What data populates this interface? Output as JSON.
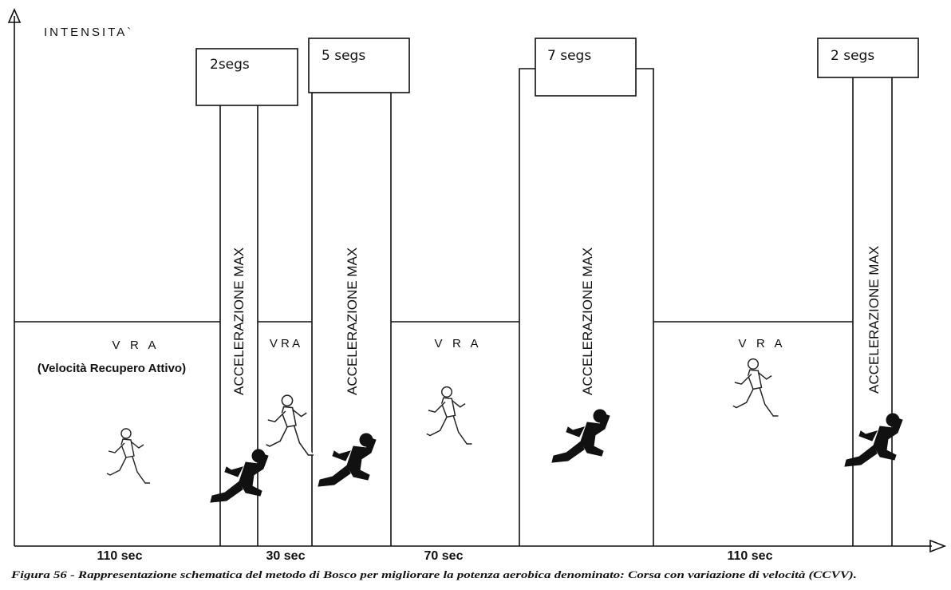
{
  "axis": {
    "y_label": "INTENSITA`"
  },
  "phases": [
    {
      "type": "vra",
      "label": "V   R   A",
      "note": "(Velocità Recupero Attivo)"
    },
    {
      "type": "accel",
      "label": "ACCELERAZIONE  MAX",
      "duration_box": "2segs"
    },
    {
      "type": "vra",
      "label": "V R A"
    },
    {
      "type": "accel",
      "label": "ACCELERAZIONE  MAX",
      "duration_box": "5 segs"
    },
    {
      "type": "vra",
      "label": "V   R   A"
    },
    {
      "type": "accel",
      "label": "ACCELERAZIONE  MAX",
      "duration_box": "7 segs"
    },
    {
      "type": "vra",
      "label": "V   R   A"
    },
    {
      "type": "accel",
      "label": "ACCELERAZIONE  MAX",
      "duration_box": "2 segs"
    }
  ],
  "durations": [
    "110 sec",
    "30 sec",
    "70 sec",
    "110 sec"
  ],
  "caption": "Figura 56 - Rappresentazione schematica del metodo di Bosco per migliorare la potenza aerobica denominato: Corsa con variazione di velocità (CCVV).",
  "icons": {
    "recovery_runner": "runner-outline-icon",
    "sprint_runner": "runner-silhouette-icon"
  }
}
